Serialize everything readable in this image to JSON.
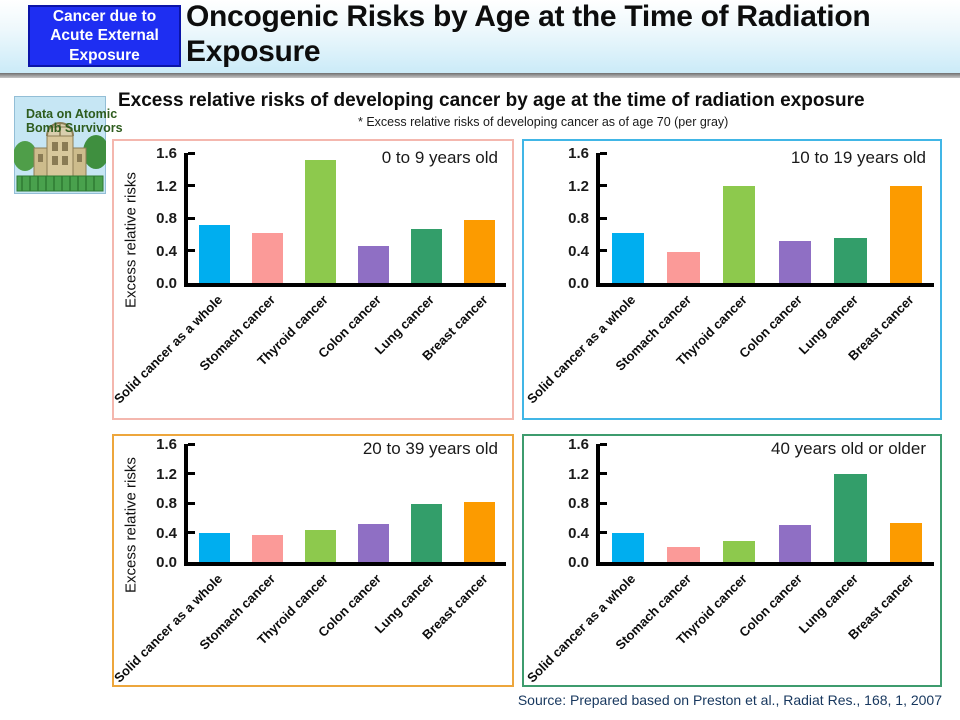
{
  "header": {
    "badge": "Cancer due to Acute External Exposure",
    "title": "Oncogenic Risks by Age at the Time of Radiation Exposure"
  },
  "intro": {
    "image_caption": "Data on Atomic Bomb Survivors",
    "heading": "Excess relative risks of developing cancer by age at the time of radiation exposure",
    "note": "* Excess relative risks of developing cancer as of age 70 (per gray)"
  },
  "source": "Source: Prepared based on Preston et al., Radiat Res., 168, 1, 2007",
  "colors": {
    "badge_bg": "#1e2ef2",
    "badge_border": "#0b14a8",
    "bar_palette": [
      "#00AEEF",
      "#FB9A98",
      "#8DC94D",
      "#8F6FC4",
      "#339E6A",
      "#FC9B00"
    ]
  },
  "chart_data": [
    {
      "type": "bar",
      "title": "0 to 9 years old",
      "xlabel": "",
      "ylabel": "Excess relative risks",
      "categories": [
        "Solid cancer as a whole",
        "Stomach cancer",
        "Thyroid cancer",
        "Colon cancer",
        "Lung cancer",
        "Breast cancer"
      ],
      "values": [
        0.72,
        0.62,
        1.52,
        0.46,
        0.66,
        0.78
      ],
      "ylim": [
        0,
        1.6
      ],
      "yticks": [
        0.0,
        0.4,
        0.8,
        1.2,
        1.6
      ],
      "grid": false,
      "legend": "none",
      "border_color": "#F4B7AE"
    },
    {
      "type": "bar",
      "title": "10 to 19 years old",
      "xlabel": "",
      "ylabel": "",
      "categories": [
        "Solid cancer as a whole",
        "Stomach cancer",
        "Thyroid cancer",
        "Colon cancer",
        "Lung cancer",
        "Breast cancer"
      ],
      "values": [
        0.62,
        0.38,
        1.2,
        0.52,
        0.56,
        1.2
      ],
      "ylim": [
        0,
        1.6
      ],
      "yticks": [
        0.0,
        0.4,
        0.8,
        1.2,
        1.6
      ],
      "grid": false,
      "legend": "none",
      "border_color": "#41B6E6"
    },
    {
      "type": "bar",
      "title": "20 to 39 years old",
      "xlabel": "",
      "ylabel": "Excess relative risks",
      "categories": [
        "Solid cancer as a whole",
        "Stomach cancer",
        "Thyroid cancer",
        "Colon cancer",
        "Lung cancer",
        "Breast cancer"
      ],
      "values": [
        0.4,
        0.36,
        0.44,
        0.52,
        0.78,
        0.82
      ],
      "ylim": [
        0,
        1.6
      ],
      "yticks": [
        0.0,
        0.4,
        0.8,
        1.2,
        1.6
      ],
      "grid": false,
      "legend": "none",
      "border_color": "#EDA63C"
    },
    {
      "type": "bar",
      "title": "40 years old or older",
      "xlabel": "",
      "ylabel": "",
      "categories": [
        "Solid cancer as a whole",
        "Stomach cancer",
        "Thyroid cancer",
        "Colon cancer",
        "Lung cancer",
        "Breast cancer"
      ],
      "values": [
        0.4,
        0.21,
        0.29,
        0.5,
        1.2,
        0.53
      ],
      "ylim": [
        0,
        1.6
      ],
      "yticks": [
        0.0,
        0.4,
        0.8,
        1.2,
        1.6
      ],
      "grid": false,
      "legend": "none",
      "border_color": "#3E9C6E"
    }
  ]
}
